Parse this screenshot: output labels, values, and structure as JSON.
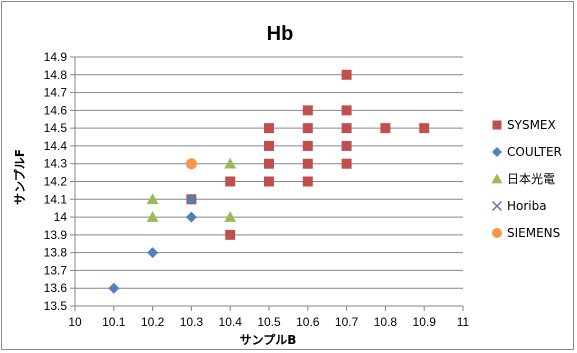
{
  "chart_data": {
    "type": "scatter",
    "title": "Hb",
    "xlabel": "サンプルB",
    "ylabel": "サンプルF",
    "xlim": [
      10,
      11
    ],
    "ylim": [
      13.5,
      14.9
    ],
    "x_ticks": [
      "10",
      "10.1",
      "10.2",
      "10.3",
      "10.4",
      "10.5",
      "10.6",
      "10.7",
      "10.8",
      "10.9",
      "11"
    ],
    "y_ticks": [
      "13.5",
      "13.6",
      "13.7",
      "13.8",
      "13.9",
      "14",
      "14.1",
      "14.2",
      "14.3",
      "14.4",
      "14.5",
      "14.6",
      "14.7",
      "14.8",
      "14.9"
    ],
    "grid": "horizontal",
    "legend_position": "right",
    "series": [
      {
        "name": "SYSMEX",
        "marker": "square",
        "color": "#c0504d",
        "points": [
          [
            10.3,
            14.1
          ],
          [
            10.4,
            13.9
          ],
          [
            10.4,
            14.2
          ],
          [
            10.5,
            14.2
          ],
          [
            10.5,
            14.3
          ],
          [
            10.5,
            14.4
          ],
          [
            10.5,
            14.5
          ],
          [
            10.6,
            14.2
          ],
          [
            10.6,
            14.3
          ],
          [
            10.6,
            14.4
          ],
          [
            10.6,
            14.5
          ],
          [
            10.6,
            14.6
          ],
          [
            10.7,
            14.3
          ],
          [
            10.7,
            14.4
          ],
          [
            10.7,
            14.5
          ],
          [
            10.7,
            14.6
          ],
          [
            10.7,
            14.8
          ],
          [
            10.8,
            14.5
          ],
          [
            10.9,
            14.5
          ]
        ]
      },
      {
        "name": "COULTER",
        "marker": "diamond",
        "color": "#4f81bd",
        "points": [
          [
            10.1,
            13.6
          ],
          [
            10.2,
            13.8
          ],
          [
            10.3,
            14.0
          ],
          [
            10.3,
            14.1
          ]
        ]
      },
      {
        "name": "日本光電",
        "marker": "triangle",
        "color": "#9bbb59",
        "points": [
          [
            10.2,
            14.0
          ],
          [
            10.2,
            14.1
          ],
          [
            10.4,
            14.0
          ],
          [
            10.4,
            14.3
          ]
        ]
      },
      {
        "name": "Horiba",
        "marker": "x",
        "color": "#8064a2",
        "points": []
      },
      {
        "name": "SIEMENS",
        "marker": "circle",
        "color": "#f79646",
        "points": [
          [
            10.3,
            14.3
          ]
        ]
      }
    ],
    "gridline_color": "#868686",
    "axis_color": "#868686"
  }
}
